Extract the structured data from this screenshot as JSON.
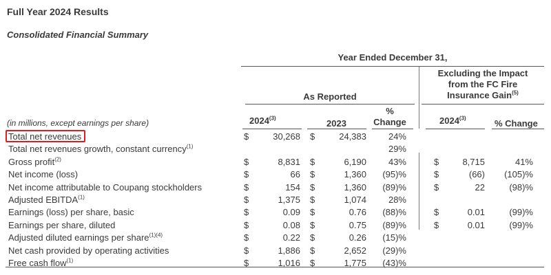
{
  "title": "Full Year 2024 Results",
  "subtitle": "Consolidated Financial Summary",
  "header": {
    "period": "Year Ended December 31,",
    "as_reported": "As Reported",
    "excluding_line1": "Excluding the Impact",
    "excluding_line2": "from the FC Fire",
    "excluding_line3": "Insurance Gain",
    "excluding_sup": "(5)",
    "units_note": "(in millions, except earnings per share)",
    "col_2024": "2024",
    "col_2024_sup": "(3)",
    "col_2023": "2023",
    "col_pct_line1": "%",
    "col_pct_line2": "Change",
    "col_excl_2024": "2024",
    "col_excl_2024_sup": "(3)",
    "col_excl_pct": "% Change"
  },
  "currency": "$",
  "rows": [
    {
      "label": "Total net revenues",
      "sup": "",
      "v2024": "30,268",
      "v2023": "24,383",
      "pct": "24%",
      "ex2024": "",
      "expct": "",
      "d1": true,
      "d2": true,
      "d3": false
    },
    {
      "label": "Total net revenues growth, constant currency",
      "sup": "(1)",
      "v2024": "",
      "v2023": "",
      "pct": "29%",
      "ex2024": "",
      "expct": "",
      "d1": false,
      "d2": false,
      "d3": false
    },
    {
      "label": "Gross profit",
      "sup": "(2)",
      "v2024": "8,831",
      "v2023": "6,190",
      "pct": "43%",
      "ex2024": "8,715",
      "expct": "41%",
      "d1": true,
      "d2": true,
      "d3": true
    },
    {
      "label": "Net income (loss)",
      "sup": "",
      "v2024": "66",
      "v2023": "1,360",
      "pct": "(95)%",
      "ex2024": "(66)",
      "expct": "(105)%",
      "d1": true,
      "d2": true,
      "d3": true
    },
    {
      "label": "Net income attributable to Coupang stockholders",
      "sup": "",
      "v2024": "154",
      "v2023": "1,360",
      "pct": "(89)%",
      "ex2024": "22",
      "expct": "(98)%",
      "d1": true,
      "d2": true,
      "d3": true
    },
    {
      "label": "Adjusted EBITDA",
      "sup": "(1)",
      "v2024": "1,375",
      "v2023": "1,074",
      "pct": "28%",
      "ex2024": "",
      "expct": "",
      "d1": true,
      "d2": true,
      "d3": false
    },
    {
      "label": "Earnings (loss) per share, basic",
      "sup": "",
      "v2024": "0.09",
      "v2023": "0.76",
      "pct": "(88)%",
      "ex2024": "0.01",
      "expct": "(99)%",
      "d1": true,
      "d2": true,
      "d3": true
    },
    {
      "label": "Earnings per share, diluted",
      "sup": "",
      "v2024": "0.08",
      "v2023": "0.75",
      "pct": "(89)%",
      "ex2024": "0.01",
      "expct": "(99)%",
      "d1": true,
      "d2": true,
      "d3": true
    },
    {
      "label": "Adjusted diluted earnings per share",
      "sup": "(1)(4)",
      "v2024": "0.22",
      "v2023": "0.26",
      "pct": "(15)%",
      "ex2024": "",
      "expct": "",
      "d1": true,
      "d2": true,
      "d3": false
    },
    {
      "label": "Net cash provided by operating activities",
      "sup": "",
      "v2024": "1,886",
      "v2023": "2,652",
      "pct": "(29)%",
      "ex2024": "",
      "expct": "",
      "d1": true,
      "d2": true,
      "d3": false
    },
    {
      "label": "Free cash flow",
      "sup": "(1)",
      "v2024": "1,016",
      "v2023": "1,775",
      "pct": "(43)%",
      "ex2024": "",
      "expct": "",
      "d1": true,
      "d2": true,
      "d3": false
    }
  ]
}
